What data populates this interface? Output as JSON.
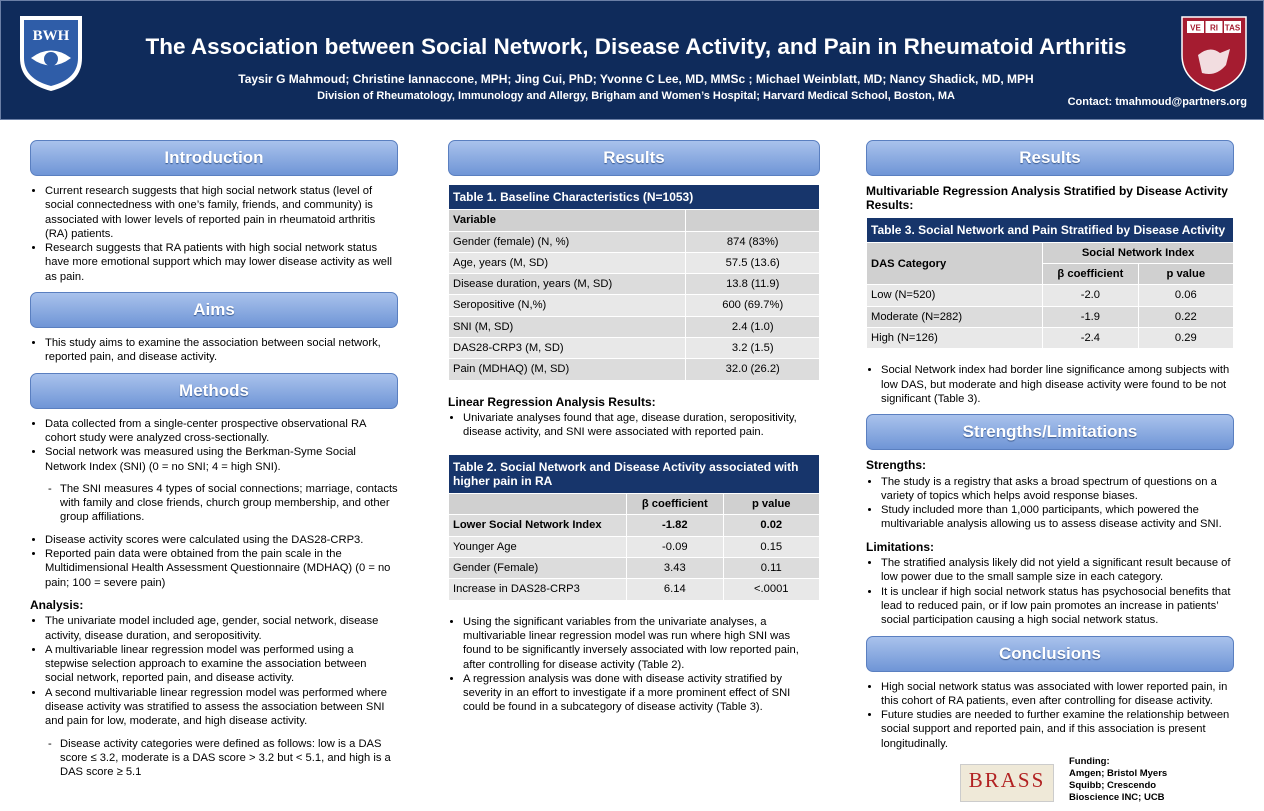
{
  "header": {
    "logo_left": "BWH",
    "title": "The Association between Social Network, Disease Activity, and Pain in Rheumatoid Arthritis",
    "authors": "Taysir G Mahmoud; Christine Iannaccone, MPH; Jing Cui, PhD; Yvonne C Lee, MD, MMSc ; Michael Weinblatt, MD; Nancy Shadick, MD, MPH",
    "affiliation": "Division of Rheumatology, Immunology and Allergy, Brigham and Women’s Hospital; Harvard Medical School, Boston, MA",
    "contact": "Contact: tmahmoud@partners.org",
    "logo_right": [
      "VE",
      "RI",
      "TAS"
    ]
  },
  "columns": [
    {
      "blocks": [
        {
          "heading": "Introduction"
        },
        {
          "bullets": [
            "Current research suggests that high social network status (level of social connectedness with one’s family, friends, and community) is associated with lower levels of reported pain in rheumatoid arthritis (RA) patients.",
            "Research suggests that RA patients with high social network status have more emotional support which may lower disease activity as well as pain."
          ]
        },
        {
          "heading": "Aims"
        },
        {
          "bullets": [
            "This study aims to examine the association between social network, reported pain, and disease activity."
          ]
        },
        {
          "heading": "Methods"
        },
        {
          "bullets": [
            "Data collected from a single-center prospective observational RA cohort study were analyzed cross-sectionally.",
            "Social network was measured using the Berkman-Syme Social Network Index (SNI) (0 = no SNI; 4 = high SNI)."
          ]
        },
        {
          "sub_bullets": [
            "The SNI measures 4 types of social connections; marriage, contacts with family and close friends, church group membership, and other group affiliations."
          ]
        },
        {
          "bullets": [
            "Disease activity scores were calculated using the DAS28-CRP3.",
            "Reported pain data were obtained from the pain scale in the Multidimensional Health Assessment Questionnaire (MDHAQ) (0 = no pain; 100 = severe pain)"
          ]
        },
        {
          "label": "Analysis:"
        },
        {
          "bullets": [
            "The univariate model included age, gender, social network, disease activity, disease duration, and seropositivity.",
            "A multivariable linear regression model was performed using a stepwise selection approach to examine the association between social network, reported pain, and disease activity.",
            "A second multivariable linear regression model was performed where disease activity was stratified to assess the association between SNI and pain for low, moderate, and high disease activity."
          ]
        },
        {
          "sub_bullets": [
            "Disease activity categories were defined as follows: low is a DAS score ≤ 3.2, moderate is a DAS score > 3.2 but < 5.1, and high is a DAS score ≥ 5.1"
          ]
        }
      ]
    },
    {
      "blocks": [
        {
          "heading": "Results"
        },
        {
          "table": {
            "title": "Table 1. Baseline Characteristics (N=1053)",
            "head": [
              [
                "Variable"
              ]
            ],
            "rows": [
              [
                "Gender (female) (N, %)",
                "874 (83%)"
              ],
              [
                "Age, years (M, SD)",
                "57.5 (13.6)"
              ],
              [
                "Disease duration, years (M, SD)",
                "13.8 (11.9)"
              ],
              [
                "Seropositive (N,%)",
                "600 (69.7%)"
              ],
              [
                "SNI (M, SD)",
                "2.4 (1.0)"
              ],
              [
                "DAS28-CRP3 (M, SD)",
                "3.2 (1.5)"
              ],
              [
                "Pain (MDHAQ) (M, SD)",
                "32.0 (26.2)"
              ]
            ]
          }
        },
        {
          "label": "Linear Regression Analysis Results:"
        },
        {
          "bullets": [
            "Univariate analyses found that age, disease duration, seropositivity, disease activity, and SNI were associated with reported pain."
          ]
        },
        {
          "table": {
            "title": "Table 2. Social Network and Disease Activity associated with higher pain in RA",
            "head": [
              [
                "β coefficient",
                "p value"
              ]
            ],
            "rows": [
              [
                "Lower Social Network Index",
                "-1.82",
                "0.02"
              ],
              [
                "Younger Age",
                "-0.09",
                "0.15"
              ],
              [
                "Gender (Female)",
                "3.43",
                "0.11"
              ],
              [
                "Increase in DAS28-CRP3",
                "6.14",
                "<.0001"
              ]
            ]
          }
        },
        {
          "bullets": [
            "Using the significant variables from the univariate analyses, a multivariable linear regression model was run where high SNI was found to be significantly inversely associated with low reported pain, after controlling for disease activity (Table 2).",
            "A regression analysis was done with disease activity stratified by severity in an effort to investigate if a more prominent effect of SNI could be found in a subcategory of disease activity (Table 3)."
          ]
        }
      ]
    },
    {
      "blocks": [
        {
          "heading": "Results"
        },
        {
          "label": "Multivariable Regression Analysis Stratified by Disease Activity Results:"
        },
        {
          "table": {
            "title": "Table 3. Social Network and Pain Stratified by Disease Activity",
            "head": [
              [
                "DAS Category",
                "Social Network Index"
              ],
              [
                "β coefficient",
                "p value"
              ]
            ],
            "rows": [
              [
                "Low (N=520)",
                "-2.0",
                "0.06"
              ],
              [
                "Moderate (N=282)",
                "-1.9",
                "0.22"
              ],
              [
                "High (N=126)",
                "-2.4",
                "0.29"
              ]
            ]
          }
        },
        {
          "bullets": [
            "Social Network index had border line significance among subjects with low DAS, but moderate and high disease activity were found to be not significant (Table 3)."
          ]
        },
        {
          "heading": "Strengths/Limitations"
        },
        {
          "label": "Strengths:"
        },
        {
          "bullets": [
            "The study is a registry that asks a broad spectrum of questions on a variety of topics which helps avoid response biases.",
            "Study included more than 1,000 participants, which powered the multivariable analysis allowing us to assess disease activity and SNI."
          ]
        },
        {
          "label": "Limitations:"
        },
        {
          "bullets": [
            "The stratified analysis likely did not yield a significant result because of low power due to the small sample size in each category.",
            "It is unclear if high social network status has psychosocial benefits that lead to reduced pain, or if low pain promotes an increase in patients’ social participation causing a high social network status."
          ]
        },
        {
          "heading": "Conclusions"
        },
        {
          "bullets": [
            "High social network status was associated with lower reported pain, in this cohort of RA patients, even after controlling for disease activity.",
            "Future studies are needed to further examine the relationship between social support and reported pain, and if this association is present longitudinally."
          ]
        }
      ]
    }
  ],
  "footer": {
    "brass": "BRASS",
    "funding_label": "Funding:",
    "funding_text": "Amgen; Bristol Myers Squibb; Crescendo Bioscience INC; UCB"
  }
}
